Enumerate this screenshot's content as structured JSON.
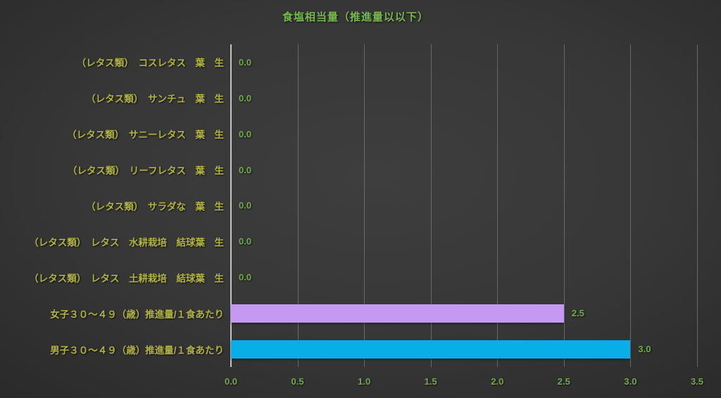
{
  "title": "食塩相当量（推進量以以下）",
  "colors": {
    "background_center": "#3e3e3e",
    "background_edge": "#242424",
    "title_text": "#77b94e",
    "category_text": "#b2b442",
    "value_text": "#70ad47",
    "tick_text": "#70ad47",
    "axis_line": "#c3c3c3",
    "gridline": "#686868",
    "bar_female": "#c598f2",
    "bar_male": "#09aee8"
  },
  "chart_data": {
    "type": "bar",
    "orientation": "horizontal",
    "title": "食塩相当量（推進量以以下）",
    "categories": [
      "（レタス類）　コスレタス　葉　生",
      "（レタス類）　サンチュ　葉　生",
      "（レタス類）　サニーレタス　葉　生",
      "（レタス類）　リーフレタス　葉　生",
      "（レタス類）　サラダな　葉　生",
      "（レタス類）　レタス　水耕栽培　結球葉　生",
      "（レタス類）　レタス　土耕栽培　結球葉　生",
      "女子３０～４９（歳）推進量/１食あたり",
      "男子３０～４９（歳）推進量/１食あたり"
    ],
    "values": [
      0.0,
      0.0,
      0.0,
      0.0,
      0.0,
      0.0,
      0.0,
      2.5,
      3.0
    ],
    "value_labels": [
      "0.0",
      "0.0",
      "0.0",
      "0.0",
      "0.0",
      "0.0",
      "0.0",
      "2.5",
      "3.0"
    ],
    "bar_colors": [
      null,
      null,
      null,
      null,
      null,
      null,
      null,
      "#c598f2",
      "#09aee8"
    ],
    "xlabel": "",
    "ylabel": "",
    "xlim": [
      0.0,
      3.5
    ],
    "x_ticks": [
      0.0,
      0.5,
      1.0,
      1.5,
      2.0,
      2.5,
      3.0,
      3.5
    ],
    "x_tick_labels": [
      "0.0",
      "0.5",
      "1.0",
      "1.5",
      "2.0",
      "2.5",
      "3.0",
      "3.5"
    ],
    "grid": true,
    "legend": false
  }
}
